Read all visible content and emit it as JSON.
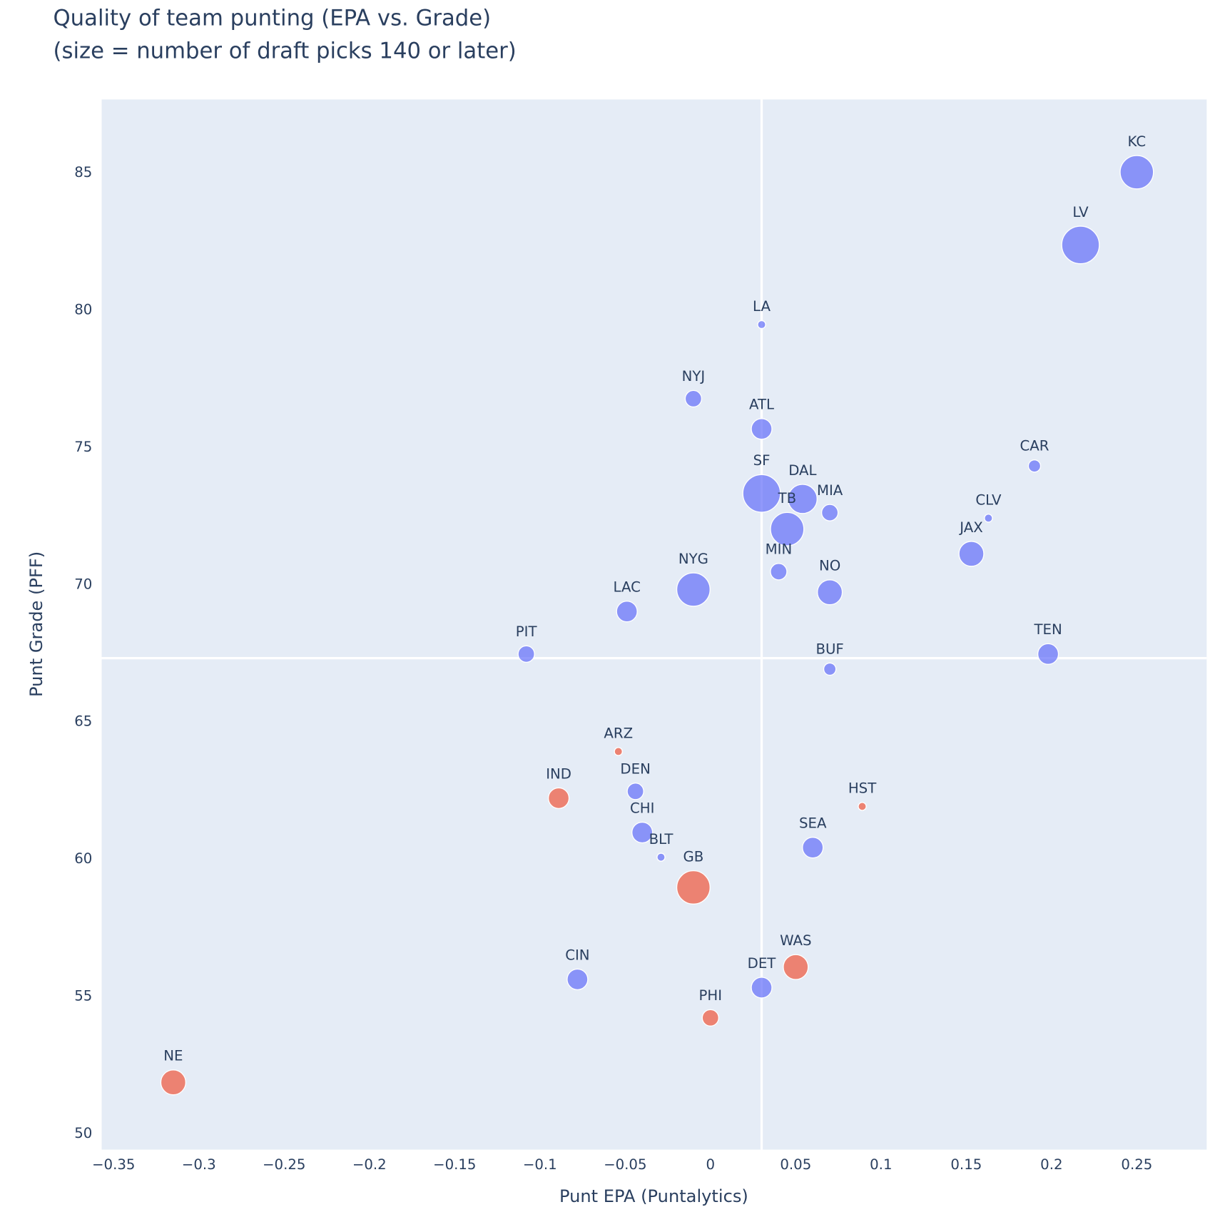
{
  "chart_data": {
    "type": "scatter",
    "title": "Quality of team punting (EPA vs. Grade)",
    "subtitle": "(size = number of draft picks 140 or later)",
    "xlabel": "Punt EPA (Puntalytics)",
    "ylabel": "Punt Grade (PFF)",
    "xlim": [
      -0.357,
      0.291
    ],
    "ylim": [
      49.4,
      87.65
    ],
    "xticks": [
      "−0.35",
      "−0.3",
      "−0.25",
      "−0.2",
      "−0.15",
      "−0.1",
      "−0.05",
      "0",
      "0.05",
      "0.1",
      "0.15",
      "0.2",
      "0.25"
    ],
    "xtick_values": [
      -0.35,
      -0.3,
      -0.25,
      -0.2,
      -0.15,
      -0.1,
      -0.05,
      0,
      0.05,
      0.1,
      0.15,
      0.2,
      0.25
    ],
    "yticks": [
      "50",
      "55",
      "60",
      "65",
      "70",
      "75",
      "80",
      "85"
    ],
    "ytick_values": [
      50,
      55,
      60,
      65,
      70,
      75,
      80,
      85
    ],
    "grid": false,
    "reference_lines": {
      "x": 0.03,
      "y": 67.3
    },
    "colors": {
      "blue": "#636efa",
      "orange": "#ef553b",
      "background": "#e5ecf6",
      "text": "#2a3f5f"
    },
    "points": [
      {
        "team": "KC",
        "x": 0.25,
        "y": 85.0,
        "size": 7,
        "color": "blue"
      },
      {
        "team": "LV",
        "x": 0.217,
        "y": 82.35,
        "size": 8,
        "color": "blue"
      },
      {
        "team": "LA",
        "x": 0.03,
        "y": 79.45,
        "size": 1,
        "color": "blue"
      },
      {
        "team": "NYJ",
        "x": -0.01,
        "y": 76.75,
        "size": 3,
        "color": "blue"
      },
      {
        "team": "ATL",
        "x": 0.03,
        "y": 75.65,
        "size": 4,
        "color": "blue"
      },
      {
        "team": "CAR",
        "x": 0.19,
        "y": 74.3,
        "size": 2,
        "color": "blue"
      },
      {
        "team": "SF",
        "x": 0.03,
        "y": 73.3,
        "size": 8,
        "color": "blue"
      },
      {
        "team": "DAL",
        "x": 0.054,
        "y": 73.1,
        "size": 6,
        "color": "blue"
      },
      {
        "team": "MIA",
        "x": 0.07,
        "y": 72.6,
        "size": 3,
        "color": "blue"
      },
      {
        "team": "CLV",
        "x": 0.163,
        "y": 72.4,
        "size": 1,
        "color": "blue"
      },
      {
        "team": "TB",
        "x": 0.045,
        "y": 72.0,
        "size": 7,
        "color": "blue"
      },
      {
        "team": "JAX",
        "x": 0.153,
        "y": 71.1,
        "size": 5,
        "color": "blue"
      },
      {
        "team": "MIN",
        "x": 0.04,
        "y": 70.45,
        "size": 3,
        "color": "blue"
      },
      {
        "team": "NYG",
        "x": -0.01,
        "y": 69.8,
        "size": 7,
        "color": "blue"
      },
      {
        "team": "NO",
        "x": 0.07,
        "y": 69.7,
        "size": 5,
        "color": "blue"
      },
      {
        "team": "LAC",
        "x": -0.049,
        "y": 69.0,
        "size": 4,
        "color": "blue"
      },
      {
        "team": "PIT",
        "x": -0.108,
        "y": 67.45,
        "size": 3,
        "color": "blue"
      },
      {
        "team": "TEN",
        "x": 0.198,
        "y": 67.45,
        "size": 4,
        "color": "blue"
      },
      {
        "team": "BUF",
        "x": 0.07,
        "y": 66.9,
        "size": 2,
        "color": "blue"
      },
      {
        "team": "ARZ",
        "x": -0.054,
        "y": 63.9,
        "size": 1,
        "color": "orange"
      },
      {
        "team": "IND",
        "x": -0.089,
        "y": 62.2,
        "size": 4,
        "color": "orange"
      },
      {
        "team": "DEN",
        "x": -0.044,
        "y": 62.45,
        "size": 3,
        "color": "blue"
      },
      {
        "team": "HST",
        "x": 0.089,
        "y": 61.9,
        "size": 1,
        "color": "orange"
      },
      {
        "team": "CHI",
        "x": -0.04,
        "y": 60.95,
        "size": 4,
        "color": "blue"
      },
      {
        "team": "SEA",
        "x": 0.06,
        "y": 60.4,
        "size": 4,
        "color": "blue"
      },
      {
        "team": "BLT",
        "x": -0.029,
        "y": 60.05,
        "size": 1,
        "color": "blue"
      },
      {
        "team": "GB",
        "x": -0.01,
        "y": 58.95,
        "size": 7,
        "color": "orange"
      },
      {
        "team": "WAS",
        "x": 0.05,
        "y": 56.05,
        "size": 5,
        "color": "orange"
      },
      {
        "team": "CIN",
        "x": -0.078,
        "y": 55.6,
        "size": 4,
        "color": "blue"
      },
      {
        "team": "DET",
        "x": 0.03,
        "y": 55.3,
        "size": 4,
        "color": "blue"
      },
      {
        "team": "PHI",
        "x": 0.0,
        "y": 54.2,
        "size": 3,
        "color": "orange"
      },
      {
        "team": "NE",
        "x": -0.315,
        "y": 51.85,
        "size": 5,
        "color": "orange"
      }
    ]
  }
}
